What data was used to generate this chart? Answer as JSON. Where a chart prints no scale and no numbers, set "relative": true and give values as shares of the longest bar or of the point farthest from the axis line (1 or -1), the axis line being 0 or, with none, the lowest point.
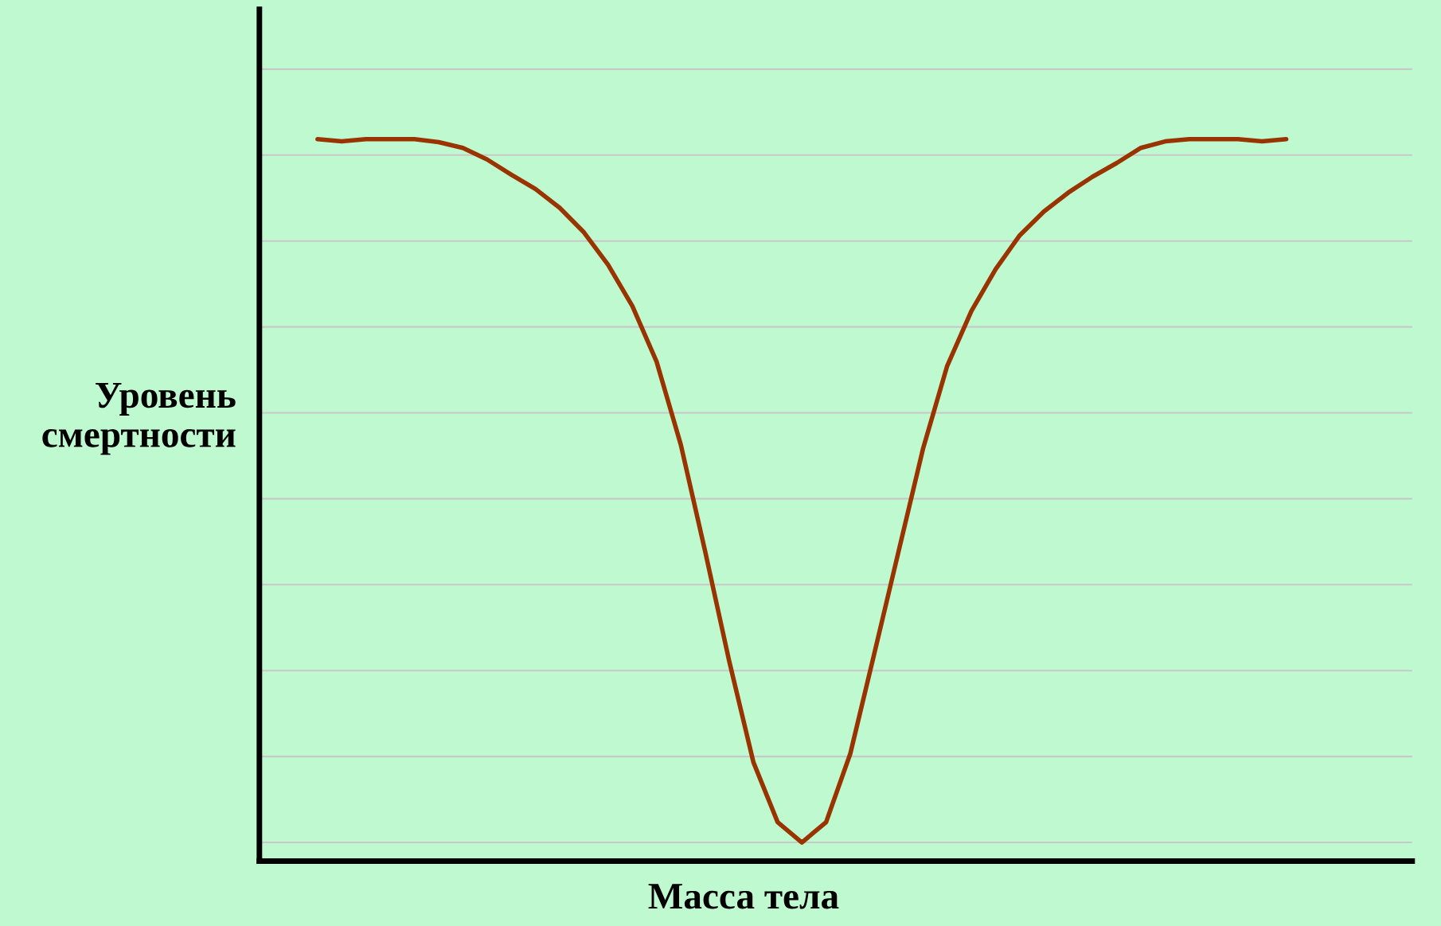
{
  "chart_data": {
    "type": "line",
    "relative": true,
    "xlabel": "Масса тела",
    "ylabel": "Уровень\nсмертности",
    "grid": "y",
    "tick_labels": false,
    "categories": [
      null,
      null,
      null,
      null,
      null,
      null,
      null,
      null,
      null,
      null,
      null,
      null,
      null,
      null,
      null,
      null,
      null,
      null,
      null,
      null,
      null,
      null,
      null,
      null,
      null,
      null,
      null,
      null,
      null,
      null,
      null,
      null,
      null,
      null,
      null,
      null,
      null,
      null,
      null,
      null,
      null
    ],
    "series": [
      {
        "color": "#993300",
        "values": [
          1.0,
          0.997,
          1.0,
          1.0,
          1.0,
          0.996,
          0.988,
          0.972,
          0.951,
          0.931,
          0.905,
          0.871,
          0.826,
          0.769,
          0.692,
          0.577,
          0.43,
          0.277,
          0.137,
          0.054,
          0.026,
          0.054,
          0.149,
          0.289,
          0.43,
          0.571,
          0.686,
          0.762,
          0.82,
          0.867,
          0.9,
          0.926,
          0.948,
          0.967,
          0.988,
          0.997,
          1.0,
          1.0,
          1.0,
          0.997,
          1.0
        ]
      }
    ]
  }
}
